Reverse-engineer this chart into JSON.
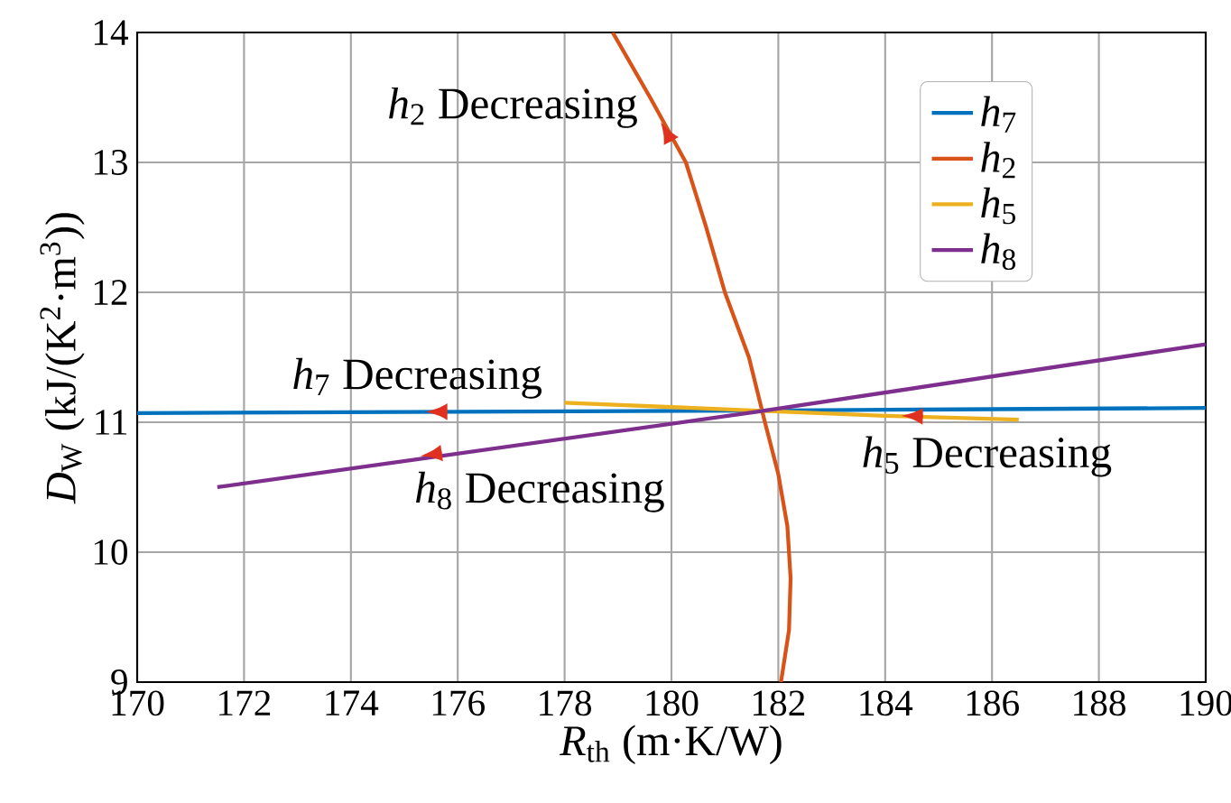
{
  "chart_data": {
    "type": "line",
    "xlabel": "*R*$_{th}$ (m·K/W)",
    "ylabel": "*D*$_{W}$ (kJ/(K$^{2}$·m$^{3}$))",
    "xlim": [
      170,
      190
    ],
    "ylim": [
      9,
      14
    ],
    "xticks": [
      170,
      172,
      174,
      176,
      178,
      180,
      182,
      184,
      186,
      188,
      190
    ],
    "yticks": [
      9,
      10,
      11,
      12,
      13,
      14
    ],
    "grid": true,
    "legend": "top right",
    "line_style": "solid",
    "marker": "none",
    "series": [
      {
        "name": "*h*$_{7}$",
        "color": "#0072bd",
        "x": [
          190,
          181.6,
          170
        ],
        "values": [
          11.11,
          11.09,
          11.07
        ]
      },
      {
        "name": "*h*$_{2}$",
        "color": "#d95319",
        "x": [
          182.05,
          182.2,
          182.23,
          182.17,
          182.0,
          181.75,
          181.45,
          181.0,
          180.65,
          180.27,
          179.6,
          178.9
        ],
        "values": [
          9,
          9.4,
          9.8,
          10.2,
          10.6,
          11.0,
          11.5,
          12.0,
          12.5,
          13.0,
          13.5,
          14.0
        ]
      },
      {
        "name": "*h*$_{5}$",
        "color": "#edb120",
        "x": [
          186.5,
          184,
          181.6,
          178
        ],
        "values": [
          11.02,
          11.05,
          11.09,
          11.15
        ]
      },
      {
        "name": "*h*$_{8}$",
        "color": "#7e2f8e",
        "x": [
          190,
          181.6,
          171.5
        ],
        "values": [
          11.6,
          11.08,
          10.5
        ]
      }
    ],
    "annotations": [
      {
        "text": "*h*$_{2}$ Decreasing",
        "x": 179.8,
        "y": 13.31
      },
      {
        "text": "*h*$_{7}$ Decreasing",
        "x": 175.4,
        "y": 11.08
      },
      {
        "text": "*h*$_{8}$ Decreasing",
        "x": 175.3,
        "y": 10.74
      },
      {
        "text": "*h*$_{5}$ Decreasing",
        "x": 184.3,
        "y": 11.05
      }
    ]
  }
}
